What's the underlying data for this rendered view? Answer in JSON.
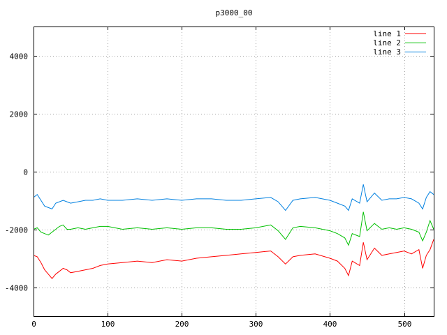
{
  "chart_data": {
    "type": "line",
    "title": "p3000_00",
    "xlabel": "",
    "ylabel": "",
    "xlim": [
      0,
      540
    ],
    "ylim": [
      -5000,
      5000
    ],
    "xticks": [
      0,
      100,
      200,
      300,
      400,
      500
    ],
    "yticks": [
      -4000,
      -2000,
      0,
      2000,
      4000
    ],
    "grid": true,
    "legend_position": "top-right",
    "series": [
      {
        "name": "line 1",
        "color": "#ff0000",
        "x": [
          0,
          5,
          10,
          15,
          20,
          25,
          30,
          35,
          40,
          45,
          50,
          60,
          70,
          80,
          90,
          100,
          120,
          140,
          160,
          180,
          200,
          220,
          240,
          260,
          280,
          300,
          320,
          330,
          340,
          350,
          360,
          380,
          400,
          410,
          420,
          425,
          430,
          440,
          445,
          450,
          460,
          470,
          480,
          490,
          500,
          510,
          520,
          525,
          530,
          535,
          540
        ],
        "y": [
          -2900,
          -2950,
          -3150,
          -3400,
          -3550,
          -3700,
          -3550,
          -3450,
          -3350,
          -3400,
          -3500,
          -3450,
          -3400,
          -3350,
          -3250,
          -3200,
          -3150,
          -3100,
          -3150,
          -3050,
          -3100,
          -3000,
          -2950,
          -2900,
          -2850,
          -2800,
          -2750,
          -2950,
          -3200,
          -2950,
          -2900,
          -2850,
          -3000,
          -3100,
          -3350,
          -3600,
          -3100,
          -3250,
          -2450,
          -3050,
          -2650,
          -2900,
          -2850,
          -2800,
          -2750,
          -2850,
          -2700,
          -3350,
          -2900,
          -2700,
          -2350
        ]
      },
      {
        "name": "line 2",
        "color": "#00c000",
        "x": [
          0,
          5,
          10,
          15,
          20,
          25,
          30,
          35,
          40,
          45,
          50,
          60,
          70,
          80,
          90,
          100,
          120,
          140,
          160,
          180,
          200,
          220,
          240,
          260,
          280,
          300,
          320,
          330,
          340,
          350,
          360,
          380,
          400,
          410,
          420,
          425,
          430,
          440,
          445,
          450,
          460,
          470,
          480,
          490,
          500,
          510,
          520,
          525,
          530,
          535,
          540
        ],
        "y": [
          -2000,
          -1950,
          -2100,
          -2150,
          -2200,
          -2100,
          -2000,
          -1900,
          -1850,
          -2000,
          -2000,
          -1950,
          -2000,
          -1950,
          -1900,
          -1900,
          -2000,
          -1950,
          -2000,
          -1950,
          -2000,
          -1950,
          -1950,
          -2000,
          -2000,
          -1950,
          -1850,
          -2050,
          -2350,
          -1950,
          -1900,
          -1950,
          -2050,
          -2150,
          -2300,
          -2550,
          -2150,
          -2250,
          -1400,
          -2050,
          -1800,
          -2000,
          -1950,
          -2000,
          -1950,
          -2000,
          -2100,
          -2400,
          -2100,
          -1700,
          -2000
        ]
      },
      {
        "name": "line 3",
        "color": "#0080e0",
        "x": [
          0,
          5,
          10,
          15,
          20,
          25,
          30,
          35,
          40,
          45,
          50,
          60,
          70,
          80,
          90,
          100,
          120,
          140,
          160,
          180,
          200,
          220,
          240,
          260,
          280,
          300,
          320,
          330,
          340,
          350,
          360,
          380,
          400,
          410,
          420,
          425,
          430,
          440,
          445,
          450,
          460,
          470,
          480,
          490,
          500,
          510,
          520,
          525,
          530,
          535,
          540
        ],
        "y": [
          -900,
          -800,
          -1000,
          -1200,
          -1250,
          -1300,
          -1100,
          -1050,
          -1000,
          -1050,
          -1100,
          -1050,
          -1000,
          -1000,
          -950,
          -1000,
          -1000,
          -950,
          -1000,
          -950,
          -1000,
          -950,
          -950,
          -1000,
          -1000,
          -950,
          -900,
          -1050,
          -1350,
          -1000,
          -950,
          -900,
          -1000,
          -1100,
          -1200,
          -1350,
          -950,
          -1100,
          -450,
          -1050,
          -750,
          -1000,
          -950,
          -950,
          -900,
          -950,
          -1100,
          -1300,
          -900,
          -700,
          -800
        ]
      }
    ]
  }
}
